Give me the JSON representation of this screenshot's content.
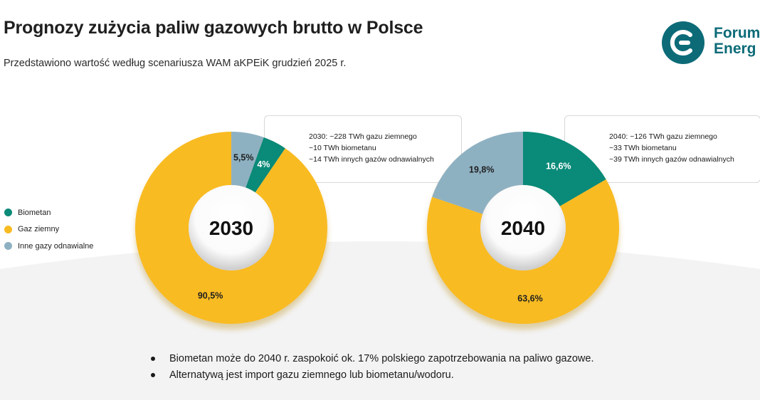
{
  "title": "Prognozy zużycia paliw gazowych brutto w Polsce",
  "subtitle": "Przedstawiono wartość według scenariusza WAM aKPEiK grudzień 2025 r.",
  "logo": {
    "line1": "Forum",
    "line2": "Energ"
  },
  "colors": {
    "biomethane": "#0a8a78",
    "natural_gas": "#f9bb22",
    "other_renewable": "#8eb1c2",
    "logo": "#0d6b78"
  },
  "chart_data": [
    {
      "type": "pie",
      "variant": "donut",
      "center_label": "2030",
      "slices": [
        {
          "name": "Inne gazy odnawialne",
          "value": 5.5,
          "label": "5,5%"
        },
        {
          "name": "Biometan",
          "value": 4.0,
          "label": "4%"
        },
        {
          "name": "Gaz ziemny",
          "value": 90.5,
          "label": "90,5%"
        }
      ]
    },
    {
      "type": "pie",
      "variant": "donut",
      "center_label": "2040",
      "slices": [
        {
          "name": "Biometan",
          "value": 16.6,
          "label": "16,6%"
        },
        {
          "name": "Gaz ziemny",
          "value": 63.6,
          "label": "63,6%"
        },
        {
          "name": "Inne gazy odnawialne",
          "value": 19.8,
          "label": "19,8%"
        }
      ]
    }
  ],
  "legend": [
    {
      "label": "Biometan",
      "color_key": "biomethane"
    },
    {
      "label": "Gaz ziemny",
      "color_key": "natural_gas"
    },
    {
      "label": "Inne gazy odnawialne",
      "color_key": "other_renewable"
    }
  ],
  "callouts": [
    {
      "lines": [
        "2030: ~228 TWh gazu ziemnego",
        "~10 TWh biometanu",
        "~14 TWh innych gazów odnawialnych"
      ]
    },
    {
      "lines": [
        "2040: ~126 TWh gazu ziemnego",
        "~33 TWh biometanu",
        "~39 TWh innych gazów odnawialnych"
      ]
    }
  ],
  "bullets": [
    "Biometan może do 2040 r. zaspokoić ok. 17% polskiego zapotrzebowania na paliwo gazowe.",
    "Alternatywą jest import gazu ziemnego lub biometanu/wodoru."
  ]
}
